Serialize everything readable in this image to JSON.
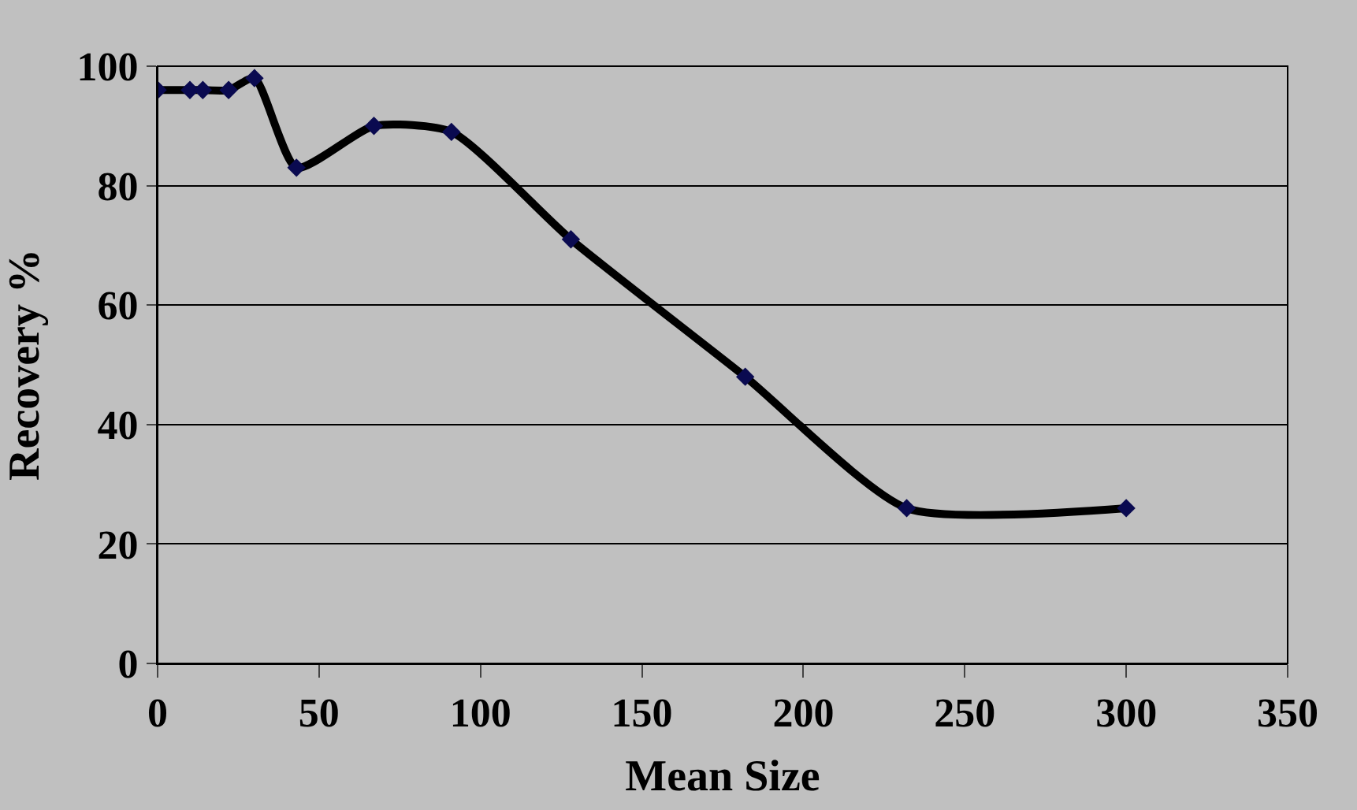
{
  "chart_data": {
    "type": "line",
    "xlabel": "Mean Size",
    "ylabel": "Recovery %",
    "x": [
      0,
      10,
      14,
      22,
      30,
      43,
      67,
      91,
      128,
      182,
      232,
      300
    ],
    "series": [
      {
        "color": "#000000",
        "values": [
          96,
          96,
          96,
          96,
          98,
          83,
          90,
          89,
          71,
          48,
          26,
          26
        ]
      }
    ],
    "xlim": [
      0,
      350
    ],
    "xticks": [
      0,
      50,
      100,
      150,
      200,
      250,
      300,
      350
    ],
    "ylim": [
      0,
      100
    ],
    "yticks": [
      0,
      20,
      40,
      60,
      80,
      100
    ],
    "grid": "y",
    "marker": "diamond",
    "line_style": "solid",
    "legend": false
  }
}
